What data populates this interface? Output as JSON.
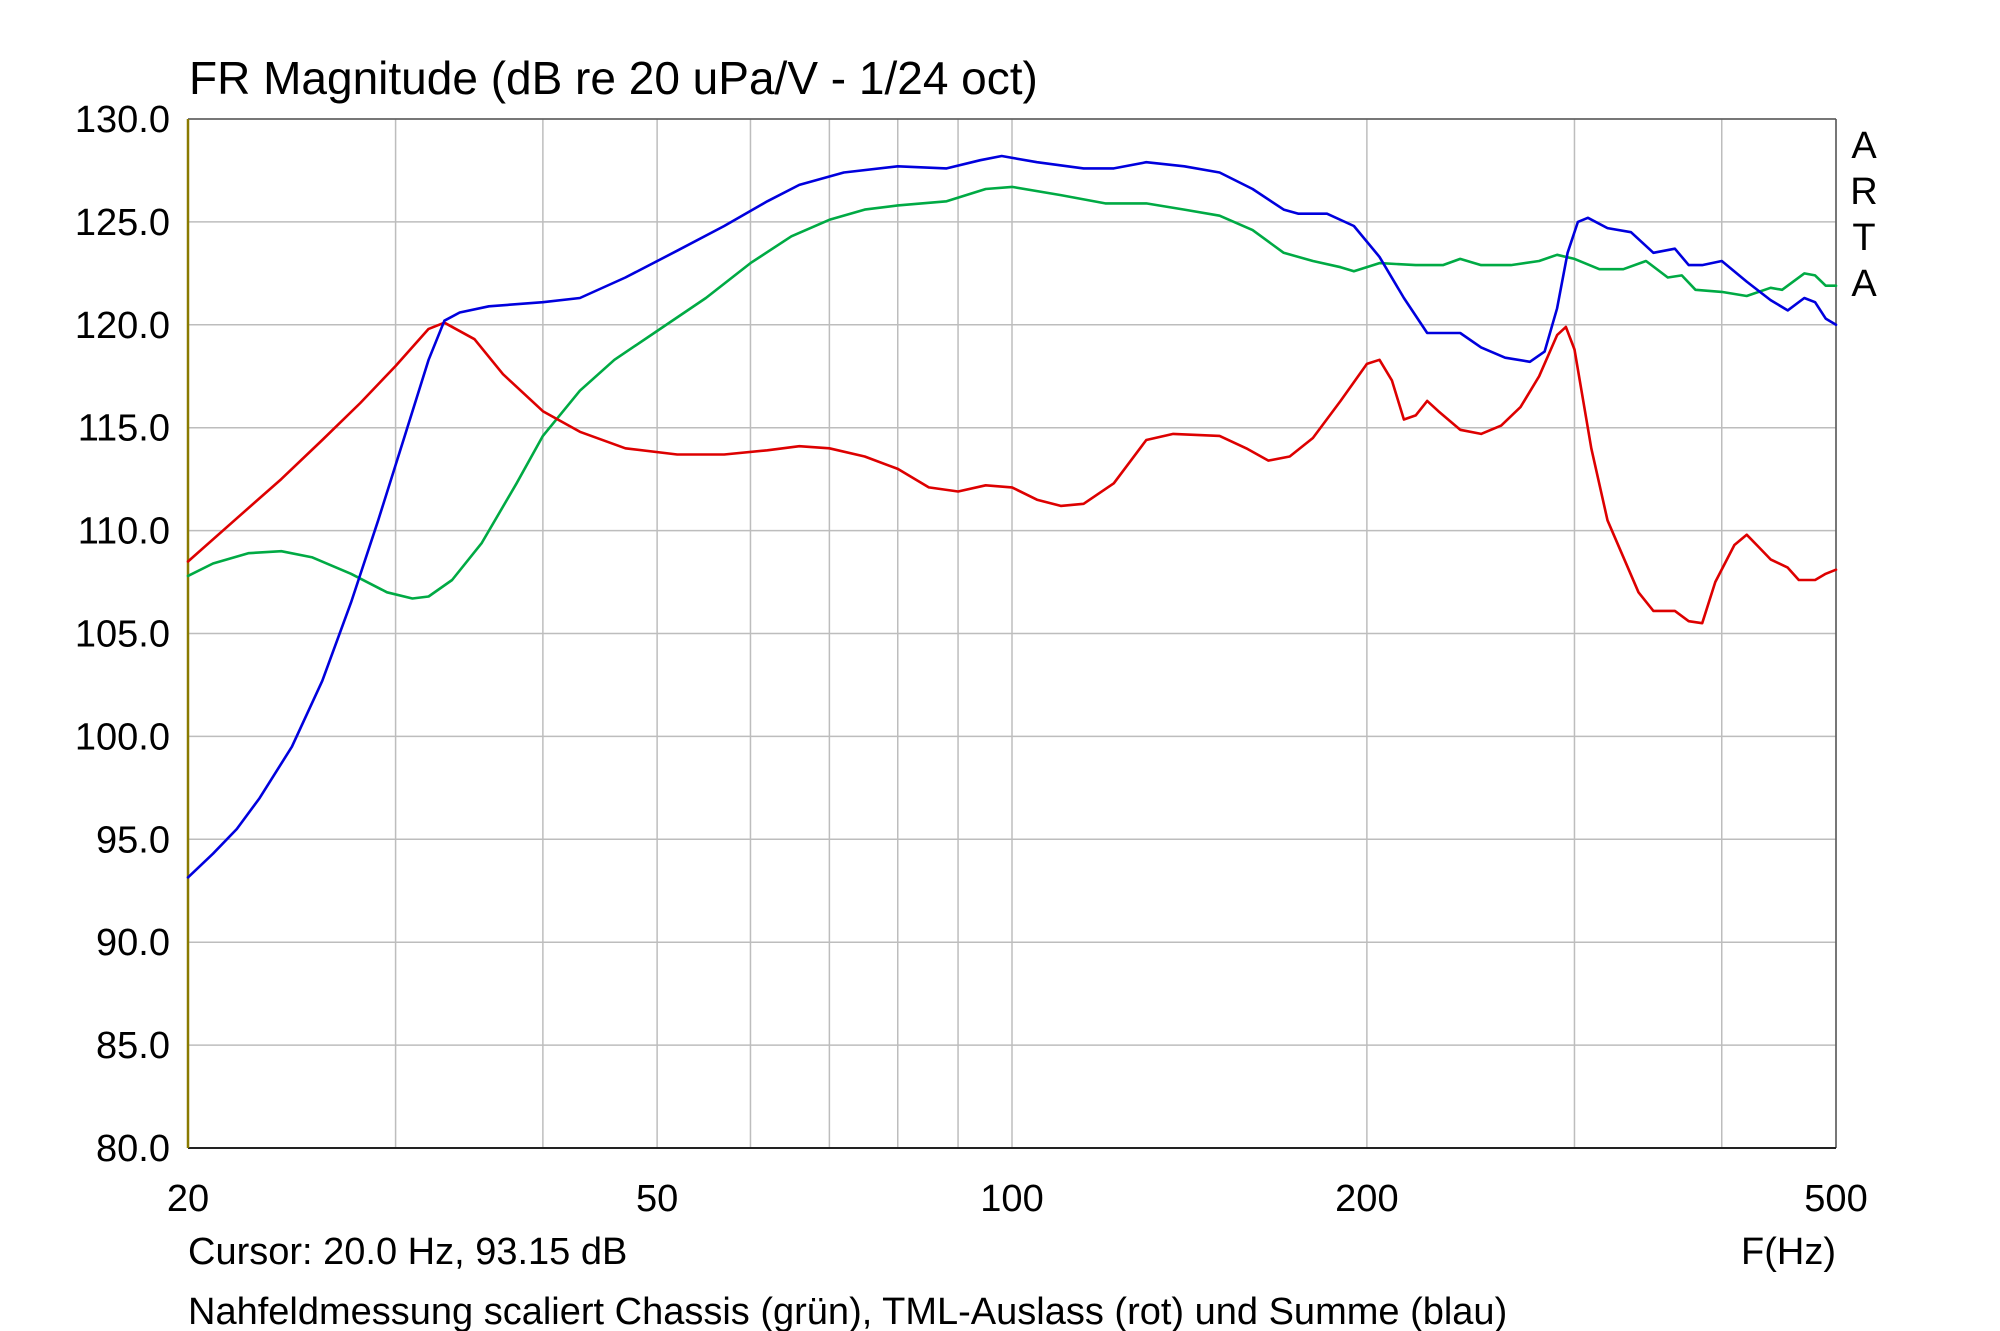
{
  "chart_data": {
    "type": "line",
    "title": "FR Magnitude (dB re 20 uPa/V - 1/24 oct)",
    "xlabel": "F(Hz)",
    "ylabel": "",
    "xscale": "log",
    "xlim": [
      20,
      500
    ],
    "ylim": [
      80,
      130
    ],
    "x_ticks": [
      20,
      50,
      100,
      200,
      500
    ],
    "x_tick_labels": [
      "20",
      "50",
      "100",
      "200",
      "500"
    ],
    "y_ticks": [
      80,
      85,
      90,
      95,
      100,
      105,
      110,
      115,
      120,
      125,
      130
    ],
    "y_tick_labels": [
      "80.0",
      "85.0",
      "90.0",
      "95.0",
      "100.0",
      "105.0",
      "110.0",
      "115.0",
      "120.0",
      "125.0",
      "130.0"
    ],
    "grid": true,
    "legend": "none",
    "cursor_text": "Cursor: 20.0 Hz, 93.15 dB",
    "caption": "Nahfeldmessung scaliert Chassis (grün), TML-Auslass (rot) und Summe (blau)",
    "brand": [
      "A",
      "R",
      "T",
      "A"
    ],
    "series": [
      {
        "color": "#00aa44",
        "points": [
          [
            20,
            107.8
          ],
          [
            21,
            108.4
          ],
          [
            22.5,
            108.9
          ],
          [
            24,
            109.0
          ],
          [
            25.5,
            108.7
          ],
          [
            27.5,
            107.9
          ],
          [
            29.5,
            107.0
          ],
          [
            31,
            106.7
          ],
          [
            32,
            106.8
          ],
          [
            33.5,
            107.6
          ],
          [
            35.5,
            109.4
          ],
          [
            38,
            112.3
          ],
          [
            40,
            114.6
          ],
          [
            43,
            116.8
          ],
          [
            46,
            118.3
          ],
          [
            50,
            119.7
          ],
          [
            55,
            121.3
          ],
          [
            60,
            123.0
          ],
          [
            65,
            124.3
          ],
          [
            70,
            125.1
          ],
          [
            75,
            125.6
          ],
          [
            80,
            125.8
          ],
          [
            88,
            126.0
          ],
          [
            95,
            126.6
          ],
          [
            100,
            126.7
          ],
          [
            110,
            126.3
          ],
          [
            120,
            125.9
          ],
          [
            130,
            125.9
          ],
          [
            140,
            125.6
          ],
          [
            150,
            125.3
          ],
          [
            160,
            124.6
          ],
          [
            170,
            123.5
          ],
          [
            180,
            123.1
          ],
          [
            190,
            122.8
          ],
          [
            195,
            122.6
          ],
          [
            205,
            123.0
          ],
          [
            220,
            122.9
          ],
          [
            232,
            122.9
          ],
          [
            240,
            123.2
          ],
          [
            250,
            122.9
          ],
          [
            265,
            122.9
          ],
          [
            280,
            123.1
          ],
          [
            290,
            123.4
          ],
          [
            300,
            123.2
          ],
          [
            315,
            122.7
          ],
          [
            330,
            122.7
          ],
          [
            345,
            123.1
          ],
          [
            360,
            122.3
          ],
          [
            370,
            122.4
          ],
          [
            380,
            121.7
          ],
          [
            400,
            121.6
          ],
          [
            420,
            121.4
          ],
          [
            440,
            121.8
          ],
          [
            450,
            121.7
          ],
          [
            470,
            122.5
          ],
          [
            480,
            122.4
          ],
          [
            490,
            121.9
          ],
          [
            500,
            121.9
          ]
        ]
      },
      {
        "color": "#dd0000",
        "points": [
          [
            20,
            108.5
          ],
          [
            22,
            110.6
          ],
          [
            24,
            112.5
          ],
          [
            26,
            114.4
          ],
          [
            28,
            116.2
          ],
          [
            30,
            118.0
          ],
          [
            32,
            119.8
          ],
          [
            33,
            120.1
          ],
          [
            35,
            119.3
          ],
          [
            37,
            117.6
          ],
          [
            40,
            115.8
          ],
          [
            43,
            114.8
          ],
          [
            47,
            114.0
          ],
          [
            52,
            113.7
          ],
          [
            57,
            113.7
          ],
          [
            62,
            113.9
          ],
          [
            66,
            114.1
          ],
          [
            70,
            114.0
          ],
          [
            75,
            113.6
          ],
          [
            80,
            113.0
          ],
          [
            85,
            112.1
          ],
          [
            90,
            111.9
          ],
          [
            95,
            112.2
          ],
          [
            100,
            112.1
          ],
          [
            105,
            111.5
          ],
          [
            110,
            111.2
          ],
          [
            115,
            111.3
          ],
          [
            122,
            112.3
          ],
          [
            130,
            114.4
          ],
          [
            137,
            114.7
          ],
          [
            150,
            114.6
          ],
          [
            158,
            114.0
          ],
          [
            165,
            113.4
          ],
          [
            172,
            113.6
          ],
          [
            180,
            114.5
          ],
          [
            190,
            116.3
          ],
          [
            200,
            118.1
          ],
          [
            205,
            118.3
          ],
          [
            210,
            117.3
          ],
          [
            215,
            115.4
          ],
          [
            220,
            115.6
          ],
          [
            225,
            116.3
          ],
          [
            230,
            115.8
          ],
          [
            240,
            114.9
          ],
          [
            250,
            114.7
          ],
          [
            260,
            115.1
          ],
          [
            270,
            116.0
          ],
          [
            280,
            117.5
          ],
          [
            290,
            119.5
          ],
          [
            295,
            119.9
          ],
          [
            300,
            118.8
          ],
          [
            310,
            114.0
          ],
          [
            320,
            110.5
          ],
          [
            340,
            107.0
          ],
          [
            350,
            106.1
          ],
          [
            365,
            106.1
          ],
          [
            375,
            105.6
          ],
          [
            385,
            105.5
          ],
          [
            395,
            107.5
          ],
          [
            410,
            109.3
          ],
          [
            420,
            109.8
          ],
          [
            430,
            109.2
          ],
          [
            440,
            108.6
          ],
          [
            455,
            108.2
          ],
          [
            465,
            107.6
          ],
          [
            480,
            107.6
          ],
          [
            490,
            107.9
          ],
          [
            500,
            108.1
          ]
        ]
      },
      {
        "color": "#0000dd",
        "points": [
          [
            20,
            93.15
          ],
          [
            21,
            94.3
          ],
          [
            22,
            95.5
          ],
          [
            23,
            97.0
          ],
          [
            24.5,
            99.5
          ],
          [
            26,
            102.7
          ],
          [
            27.5,
            106.5
          ],
          [
            29,
            110.5
          ],
          [
            30.5,
            114.5
          ],
          [
            32,
            118.3
          ],
          [
            33,
            120.2
          ],
          [
            34,
            120.6
          ],
          [
            36,
            120.9
          ],
          [
            40,
            121.1
          ],
          [
            43,
            121.3
          ],
          [
            47,
            122.3
          ],
          [
            52,
            123.6
          ],
          [
            57,
            124.8
          ],
          [
            62,
            126.0
          ],
          [
            66,
            126.8
          ],
          [
            72,
            127.4
          ],
          [
            80,
            127.7
          ],
          [
            88,
            127.6
          ],
          [
            94,
            128.0
          ],
          [
            98,
            128.2
          ],
          [
            105,
            127.9
          ],
          [
            115,
            127.6
          ],
          [
            122,
            127.6
          ],
          [
            130,
            127.9
          ],
          [
            140,
            127.7
          ],
          [
            150,
            127.4
          ],
          [
            160,
            126.6
          ],
          [
            170,
            125.6
          ],
          [
            175,
            125.4
          ],
          [
            185,
            125.4
          ],
          [
            195,
            124.8
          ],
          [
            205,
            123.3
          ],
          [
            215,
            121.3
          ],
          [
            225,
            119.6
          ],
          [
            230,
            119.6
          ],
          [
            240,
            119.6
          ],
          [
            250,
            118.9
          ],
          [
            262,
            118.4
          ],
          [
            275,
            118.2
          ],
          [
            283,
            118.7
          ],
          [
            290,
            120.8
          ],
          [
            296,
            123.5
          ],
          [
            302,
            125.0
          ],
          [
            308,
            125.2
          ],
          [
            320,
            124.7
          ],
          [
            335,
            124.5
          ],
          [
            350,
            123.5
          ],
          [
            365,
            123.7
          ],
          [
            375,
            122.9
          ],
          [
            385,
            122.9
          ],
          [
            400,
            123.1
          ],
          [
            420,
            122.1
          ],
          [
            440,
            121.2
          ],
          [
            455,
            120.7
          ],
          [
            470,
            121.3
          ],
          [
            480,
            121.1
          ],
          [
            490,
            120.3
          ],
          [
            500,
            120.0
          ]
        ]
      }
    ]
  }
}
